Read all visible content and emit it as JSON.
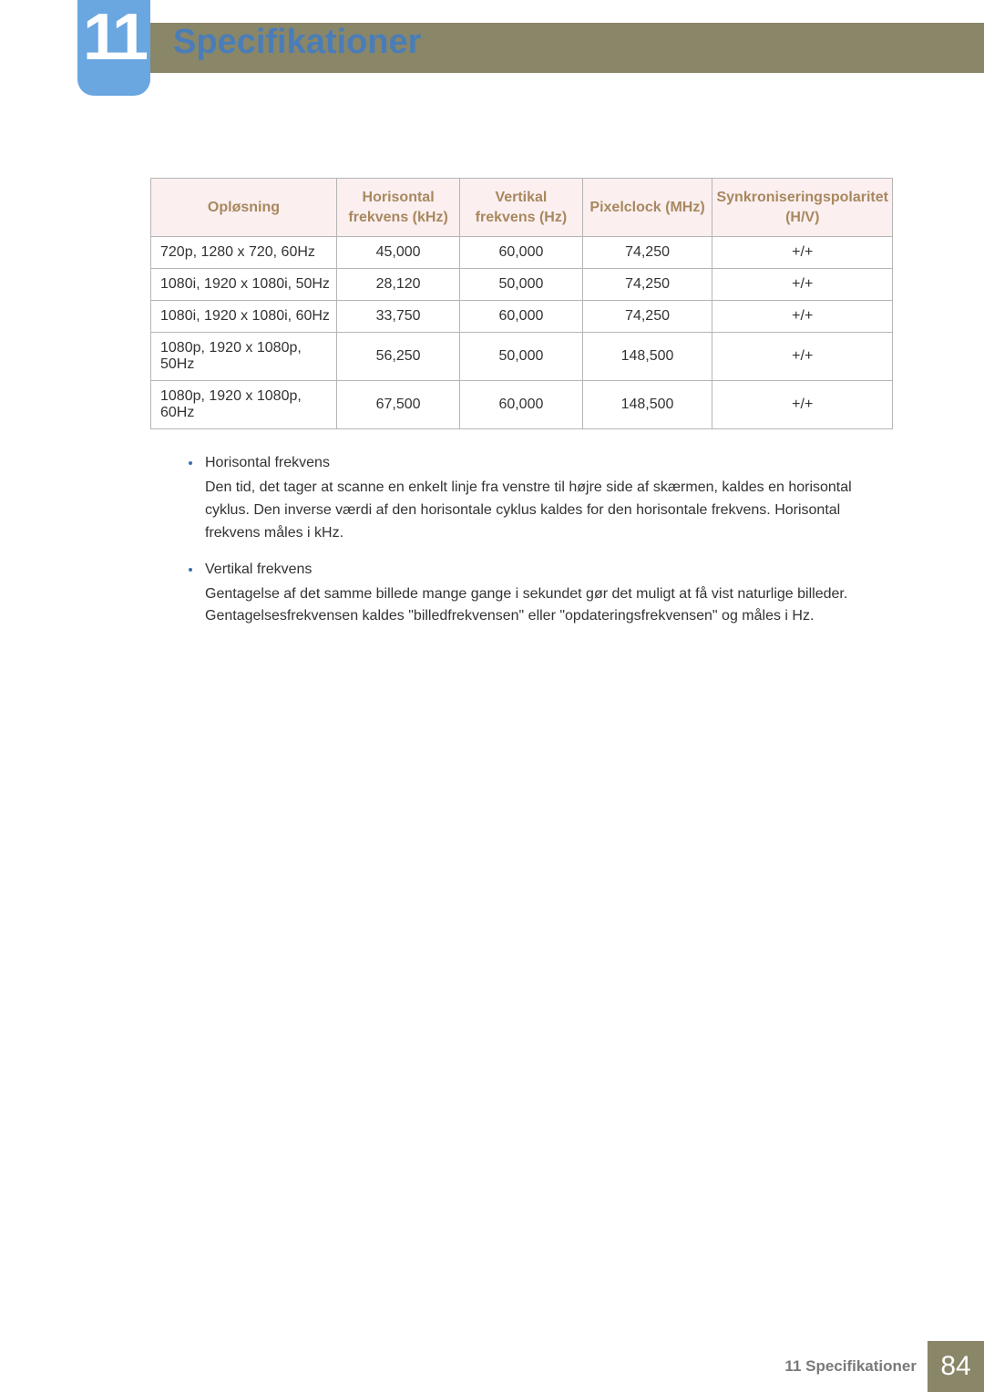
{
  "chapter": {
    "number": "11",
    "title": "Specifikationer"
  },
  "table": {
    "columns": [
      "Opløsning",
      "Horisontal frekvens (kHz)",
      "Vertikal frekvens (Hz)",
      "Pixelclock (MHz)",
      "Synkroniseringspolaritet (H/V)"
    ],
    "rows": [
      [
        "720p, 1280 x 720, 60Hz",
        "45,000",
        "60,000",
        "74,250",
        "+/+"
      ],
      [
        "1080i, 1920 x 1080i, 50Hz",
        "28,120",
        "50,000",
        "74,250",
        "+/+"
      ],
      [
        "1080i, 1920 x 1080i, 60Hz",
        "33,750",
        "60,000",
        "74,250",
        "+/+"
      ],
      [
        "1080p, 1920 x 1080p, 50Hz",
        "56,250",
        "50,000",
        "148,500",
        "+/+"
      ],
      [
        "1080p, 1920 x 1080p, 60Hz",
        "67,500",
        "60,000",
        "148,500",
        "+/+"
      ]
    ]
  },
  "notes": [
    {
      "title": "Horisontal frekvens",
      "body": "Den tid, det tager at scanne en enkelt linje fra venstre til højre side af skærmen, kaldes en horisontal cyklus. Den inverse værdi af den horisontale cyklus kaldes for den horisontale frekvens. Horisontal frekvens måles i kHz."
    },
    {
      "title": "Vertikal frekvens",
      "body": "Gentagelse af det samme billede mange gange i sekundet gør det muligt at få vist naturlige billeder. Gentagelsesfrekvensen kaldes \"billedfrekvensen\" eller \"opdateringsfrekvensen\" og måles i Hz."
    }
  ],
  "footer": {
    "section": "11 Specifikationer",
    "page": "84"
  },
  "colors": {
    "header_mid": "#c0c5ad",
    "header_right": "#8a8668",
    "badge_bg": "#6aa6e0",
    "title_color": "#4a7db8",
    "th_bg": "#fbeff0",
    "th_color": "#a8885e",
    "border": "#b5b5b5",
    "bullet": "#3b6fab",
    "footer_text": "#7a7a7a"
  }
}
